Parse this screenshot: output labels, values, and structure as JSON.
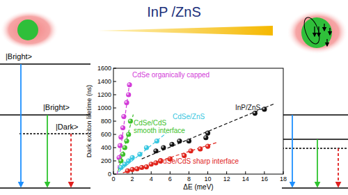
{
  "chart_data": {
    "type": "scatter",
    "xlabel": "ΔE (meV)",
    "ylabel": "Dark exciton lifetime (ns)",
    "xlim": [
      0,
      18
    ],
    "xticks": [
      0,
      2,
      4,
      6,
      8,
      10,
      12,
      14,
      16,
      18
    ],
    "ylim": [
      0,
      1600
    ],
    "yticks": [
      0,
      200,
      400,
      600,
      800,
      1000,
      1200,
      1400,
      1600
    ],
    "grid": false,
    "marker": "circle",
    "series": [
      {
        "name": "CdSe organically capped",
        "color": "#d23bd8",
        "x": [
          0.6,
          0.7,
          0.8,
          1.0,
          1.1,
          1.4,
          1.6,
          1.7
        ],
        "values": [
          250,
          430,
          560,
          700,
          870,
          1080,
          1200,
          1350
        ],
        "fit": {
          "x": [
            0.4,
            1.75
          ],
          "values": [
            0,
            1420
          ]
        }
      },
      {
        "name": "CdSe/CdS smooth interface",
        "color": "#3cbf2a",
        "x": [
          0.8,
          1.0,
          1.2,
          1.4,
          1.6,
          1.8
        ],
        "values": [
          200,
          300,
          400,
          500,
          600,
          800
        ],
        "fit": {
          "x": [
            0.5,
            2.1
          ],
          "values": [
            50,
            900
          ]
        }
      },
      {
        "name": "CdSe/ZnS",
        "color": "#35c6e0",
        "x": [
          0.8,
          1.2,
          1.6,
          2.0,
          2.8,
          3.5,
          4.6
        ],
        "values": [
          100,
          150,
          200,
          250,
          300,
          400,
          500
        ],
        "fit": {
          "x": [
            0.5,
            5.6
          ],
          "values": [
            30,
            620
          ]
        }
      },
      {
        "name": "InP/ZnS",
        "color": "#111111",
        "x": [
          4.5,
          5.3,
          6.2,
          7.0,
          8.0,
          9.8,
          10.0,
          15.0,
          16.0
        ],
        "values": [
          350,
          400,
          450,
          500,
          500,
          550,
          620,
          920,
          980
        ],
        "fit": {
          "x": [
            3.0,
            17.0
          ],
          "values": [
            230,
            1060
          ]
        }
      },
      {
        "name": "CdSe/CdS sharp interface",
        "color": "#e0231b",
        "x": [
          1.5,
          2.0,
          2.5,
          3.0,
          3.5,
          4.0,
          4.5,
          5.0,
          6.0,
          7.5,
          8.2,
          9.2,
          10.0
        ],
        "values": [
          50,
          70,
          80,
          100,
          110,
          150,
          170,
          200,
          230,
          280,
          350,
          380,
          420
        ],
        "fit": {
          "x": [
            1.0,
            11.0
          ],
          "values": [
            20,
            480
          ]
        }
      }
    ]
  },
  "diagram": {
    "title": "InP /ZnS",
    "left_levels": [
      "|Bright>",
      "|Bright>",
      "|Dark>"
    ]
  }
}
